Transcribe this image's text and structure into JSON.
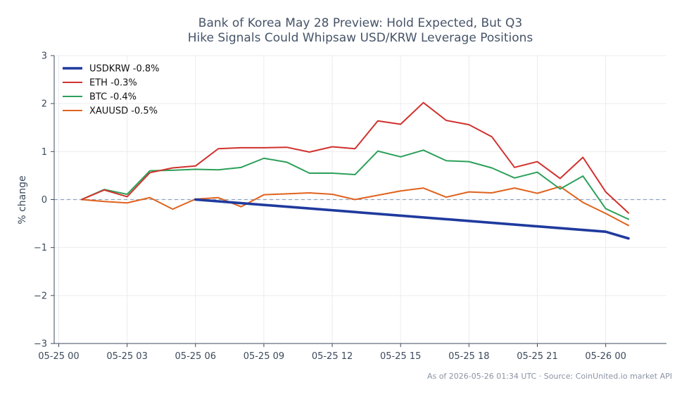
{
  "chart_data": {
    "type": "line",
    "title_lines": [
      "Bank of Korea May 28 Preview: Hold Expected, But Q3",
      "Hike Signals Could Whipsaw USD/KRW Leverage Positions"
    ],
    "xlabel": "",
    "ylabel": "% change",
    "xlim": [
      "2026-05-24T23:48",
      "2026-05-26T02:40"
    ],
    "ylim": [
      -3,
      3
    ],
    "x_ticks": [
      {
        "at": "2026-05-25T00:00",
        "label": "05-25 00"
      },
      {
        "at": "2026-05-25T03:00",
        "label": "05-25 03"
      },
      {
        "at": "2026-05-25T06:00",
        "label": "05-25 06"
      },
      {
        "at": "2026-05-25T09:00",
        "label": "05-25 09"
      },
      {
        "at": "2026-05-25T12:00",
        "label": "05-25 12"
      },
      {
        "at": "2026-05-25T15:00",
        "label": "05-25 15"
      },
      {
        "at": "2026-05-25T18:00",
        "label": "05-25 18"
      },
      {
        "at": "2026-05-25T21:00",
        "label": "05-25 21"
      },
      {
        "at": "2026-05-26T00:00",
        "label": "05-26 00"
      }
    ],
    "y_ticks": [
      {
        "value": 3,
        "label": "3"
      },
      {
        "value": 2,
        "label": "2"
      },
      {
        "value": 1,
        "label": "1"
      },
      {
        "value": 0,
        "label": "0"
      },
      {
        "value": -1,
        "label": "−1"
      },
      {
        "value": -2,
        "label": "−2"
      },
      {
        "value": -3,
        "label": "−3"
      }
    ],
    "reference_line": {
      "y": 0,
      "style": "dashed",
      "color": "#8fa3c0"
    },
    "grid": true,
    "legend_position": "top-left",
    "series": [
      {
        "name": "USDKRW -0.8%",
        "color": "#1f3a9e",
        "points": [
          [
            "2026-05-25T06:00",
            0.0
          ],
          [
            "2026-05-26T00:00",
            -0.67
          ],
          [
            "2026-05-26T01:00",
            -0.81
          ]
        ]
      },
      {
        "name": "ETH -0.3%",
        "color": "#d0312d",
        "points": [
          [
            "2026-05-25T01:00",
            0.0
          ],
          [
            "2026-05-25T02:00",
            0.2
          ],
          [
            "2026-05-25T03:00",
            0.06
          ],
          [
            "2026-05-25T04:00",
            0.56
          ],
          [
            "2026-05-25T05:00",
            0.66
          ],
          [
            "2026-05-25T06:00",
            0.7
          ],
          [
            "2026-05-25T07:00",
            1.06
          ],
          [
            "2026-05-25T08:00",
            1.08
          ],
          [
            "2026-05-25T09:00",
            1.08
          ],
          [
            "2026-05-25T10:00",
            1.09
          ],
          [
            "2026-05-25T11:00",
            0.99
          ],
          [
            "2026-05-25T12:00",
            1.1
          ],
          [
            "2026-05-25T13:00",
            1.06
          ],
          [
            "2026-05-25T14:00",
            1.64
          ],
          [
            "2026-05-25T15:00",
            1.57
          ],
          [
            "2026-05-25T16:00",
            2.02
          ],
          [
            "2026-05-25T17:00",
            1.65
          ],
          [
            "2026-05-25T18:00",
            1.56
          ],
          [
            "2026-05-25T19:00",
            1.31
          ],
          [
            "2026-05-25T20:00",
            0.67
          ],
          [
            "2026-05-25T21:00",
            0.79
          ],
          [
            "2026-05-25T22:00",
            0.44
          ],
          [
            "2026-05-25T23:00",
            0.88
          ],
          [
            "2026-05-26T00:00",
            0.16
          ],
          [
            "2026-05-26T01:00",
            -0.28
          ]
        ]
      },
      {
        "name": "BTC -0.4%",
        "color": "#2ca05a",
        "points": [
          [
            "2026-05-25T01:00",
            0.0
          ],
          [
            "2026-05-25T02:00",
            0.21
          ],
          [
            "2026-05-25T03:00",
            0.11
          ],
          [
            "2026-05-25T04:00",
            0.6
          ],
          [
            "2026-05-25T05:00",
            0.61
          ],
          [
            "2026-05-25T06:00",
            0.63
          ],
          [
            "2026-05-25T07:00",
            0.62
          ],
          [
            "2026-05-25T08:00",
            0.67
          ],
          [
            "2026-05-25T09:00",
            0.86
          ],
          [
            "2026-05-25T10:00",
            0.78
          ],
          [
            "2026-05-25T11:00",
            0.55
          ],
          [
            "2026-05-25T12:00",
            0.55
          ],
          [
            "2026-05-25T13:00",
            0.52
          ],
          [
            "2026-05-25T14:00",
            1.01
          ],
          [
            "2026-05-25T15:00",
            0.89
          ],
          [
            "2026-05-25T16:00",
            1.03
          ],
          [
            "2026-05-25T17:00",
            0.81
          ],
          [
            "2026-05-25T18:00",
            0.79
          ],
          [
            "2026-05-25T19:00",
            0.66
          ],
          [
            "2026-05-25T20:00",
            0.45
          ],
          [
            "2026-05-25T21:00",
            0.57
          ],
          [
            "2026-05-25T22:00",
            0.22
          ],
          [
            "2026-05-25T23:00",
            0.49
          ],
          [
            "2026-05-26T00:00",
            -0.19
          ],
          [
            "2026-05-26T01:00",
            -0.41
          ]
        ]
      },
      {
        "name": "XAUUSD -0.5%",
        "color": "#e0621d",
        "points": [
          [
            "2026-05-25T01:00",
            0.0
          ],
          [
            "2026-05-25T02:00",
            -0.04
          ],
          [
            "2026-05-25T03:00",
            -0.07
          ],
          [
            "2026-05-25T04:00",
            0.04
          ],
          [
            "2026-05-25T05:00",
            -0.2
          ],
          [
            "2026-05-25T06:00",
            0.01
          ],
          [
            "2026-05-25T07:00",
            0.04
          ],
          [
            "2026-05-25T08:00",
            -0.15
          ],
          [
            "2026-05-25T09:00",
            0.1
          ],
          [
            "2026-05-25T10:00",
            0.12
          ],
          [
            "2026-05-25T11:00",
            0.14
          ],
          [
            "2026-05-25T12:00",
            0.11
          ],
          [
            "2026-05-25T13:00",
            0.0
          ],
          [
            "2026-05-25T14:00",
            0.09
          ],
          [
            "2026-05-25T15:00",
            0.18
          ],
          [
            "2026-05-25T16:00",
            0.24
          ],
          [
            "2026-05-25T17:00",
            0.05
          ],
          [
            "2026-05-25T18:00",
            0.16
          ],
          [
            "2026-05-25T19:00",
            0.14
          ],
          [
            "2026-05-25T20:00",
            0.24
          ],
          [
            "2026-05-25T21:00",
            0.13
          ],
          [
            "2026-05-25T22:00",
            0.27
          ],
          [
            "2026-05-25T23:00",
            -0.06
          ],
          [
            "2026-05-26T00:00",
            -0.29
          ],
          [
            "2026-05-26T01:00",
            -0.54
          ]
        ]
      }
    ],
    "footnote": "As of 2026-05-26 01:34 UTC · Source: CoinUnited.io market API"
  }
}
